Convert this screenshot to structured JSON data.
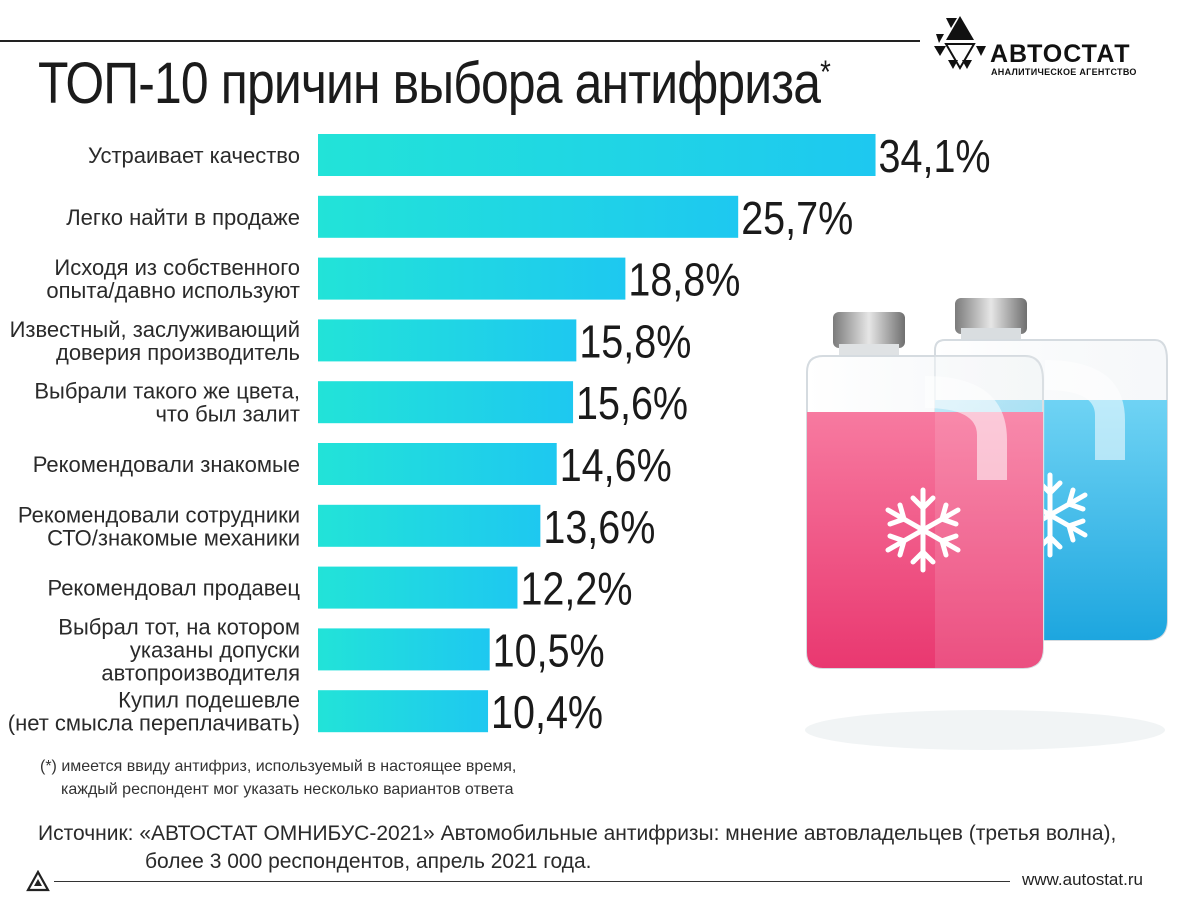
{
  "logo": {
    "name": "АВТОСТАТ",
    "tagline": "АНАЛИТИЧЕСКОЕ АГЕНТСТВО"
  },
  "chart_data": {
    "type": "bar",
    "orientation": "horizontal",
    "title": "ТОП-10 причин выбора антифриза",
    "title_mark": "*",
    "categories": [
      [
        "Устраивает качество"
      ],
      [
        "Легко найти в продаже"
      ],
      [
        "Исходя из собственного",
        "опыта/давно используют"
      ],
      [
        "Известный, заслуживающий",
        "доверия производитель"
      ],
      [
        "Выбрали такого же цвета,",
        "что был залит"
      ],
      [
        "Рекомендовали знакомые"
      ],
      [
        "Рекомендовали сотрудники",
        "СТО/знакомые механики"
      ],
      [
        "Рекомендовал продавец"
      ],
      [
        "Выбрал тот, на котором",
        "указаны допуски",
        "автопроизводителя"
      ],
      [
        "Купил подешевле",
        "(нет смысла переплачивать)"
      ]
    ],
    "values": [
      34.1,
      25.7,
      18.8,
      15.8,
      15.6,
      14.6,
      13.6,
      12.2,
      10.5,
      10.4
    ],
    "value_labels": [
      "34,1%",
      "25,7%",
      "18,8%",
      "15,8%",
      "15,6%",
      "14,6%",
      "13,6%",
      "12,2%",
      "10,5%",
      "10,4%"
    ],
    "unit": "%",
    "bar_gradient": [
      "#22e3d8",
      "#1ec8f0"
    ]
  },
  "footnote": {
    "line1": "(*) имеется ввиду антифриз, используемый в настоящее время,",
    "line2": "каждый респондент мог указать несколько вариантов ответа"
  },
  "source": {
    "line1": "Источник: «АВТОСТАТ ОМНИБУС-2021» Автомобильные антифризы: мнение автовладельцев (третья волна),",
    "line2": "более 3 000 респондентов, апрель 2021 года."
  },
  "site": "www.autostat.ru",
  "colors": {
    "pink_fluid": "#f0517e",
    "blue_fluid": "#28b6e8",
    "text": "#1a1a1a"
  },
  "illustration": {
    "name": "antifreeze-jugs-illustration",
    "icons": [
      "snowflake-icon",
      "snowflake-icon"
    ]
  }
}
